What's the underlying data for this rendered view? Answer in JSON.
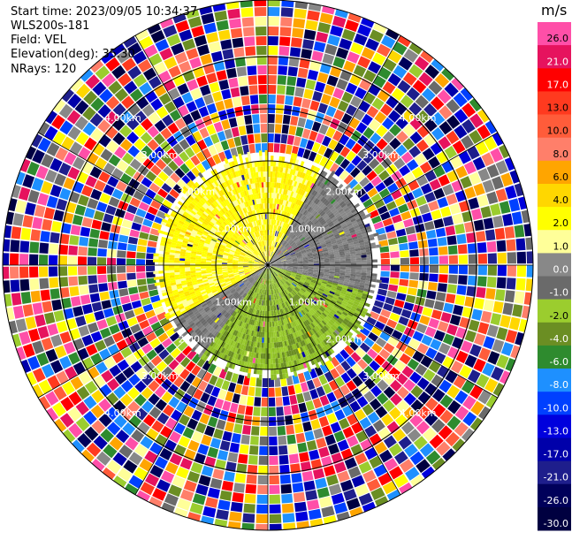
{
  "header": {
    "start_time": "Start time: 2023/09/05 10:34:37",
    "instrument": "WLS200s-181",
    "field": "Field: VEL",
    "elevation": "Elevation(deg): 35.30",
    "nrays": "NRays: 120"
  },
  "chart_data": {
    "type": "heatmap",
    "projection": "polar PPI",
    "title": "",
    "field": "VEL",
    "n_rays": 120,
    "elevation_deg": 35.3,
    "ring_labels": [
      "1.00km",
      "2.00km",
      "3.00km",
      "4.00km"
    ],
    "colorbar": {
      "unit": "m/s",
      "ticks": [
        "26.0",
        "21.0",
        "17.0",
        "13.0",
        "10.0",
        "8.0",
        "6.0",
        "4.0",
        "2.0",
        "1.0",
        "0.0",
        "-1.0",
        "-2.0",
        "-4.0",
        "-6.0",
        "-8.0",
        "-10.0",
        "-13.0",
        "-17.0",
        "-21.0",
        "-26.0",
        "-30.0"
      ],
      "colors": [
        "#ff4fa8",
        "#e6135e",
        "#ff0000",
        "#ff3a1f",
        "#ff5c3a",
        "#ff7f6a",
        "#ffa500",
        "#ffd700",
        "#ffff00",
        "#ffff99",
        "#888888",
        "#6a6a6a",
        "#9bcd2e",
        "#6b8e23",
        "#2e8b2e",
        "#1e90ff",
        "#0040ff",
        "#0000dd",
        "#0000aa",
        "#1e1e8c",
        "#00005a",
        "#000040"
      ]
    },
    "near_field": {
      "positive_sector": "west / north, 1.0 to 4.0 m/s (yellow)",
      "near_zero_sector": "north-east and south-west, about 0 m/s (grey)",
      "negative_sector": "east / south, -1.0 to -4.0 m/s (green)"
    }
  }
}
